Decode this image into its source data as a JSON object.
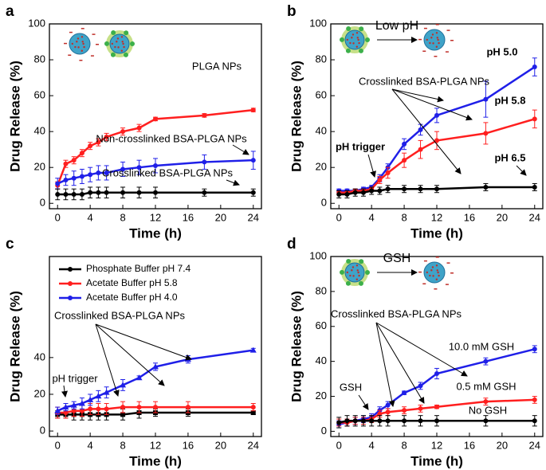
{
  "chart_data": [
    {
      "type": "line",
      "label": "a",
      "xlabel": "Time (h)",
      "ylabel": "Drug Release (%)",
      "xlim": [
        -1,
        25
      ],
      "ylim": [
        -3,
        100
      ],
      "xticks": [
        0,
        4,
        8,
        12,
        16,
        20,
        24
      ],
      "yticks": [
        0,
        20,
        40,
        60,
        80,
        100
      ],
      "x": [
        0,
        1,
        2,
        3,
        4,
        5,
        6,
        8,
        10,
        12,
        18,
        24
      ],
      "series": [
        {
          "name": "PLGA NPs",
          "color": "#ff1f1f",
          "values": [
            10,
            22,
            24,
            28,
            32,
            34,
            37,
            40,
            42,
            47,
            49,
            52
          ],
          "errors": [
            2,
            2,
            2,
            2,
            2,
            2,
            2,
            2,
            2,
            1,
            1,
            1
          ]
        },
        {
          "name": "Non-crosslinked BSA-PLGA NPs",
          "color": "#1f1fe8",
          "values": [
            11,
            13,
            14,
            15,
            16,
            17,
            17,
            19,
            20,
            21,
            23,
            24
          ],
          "errors": [
            3,
            3,
            4,
            4,
            4,
            4,
            4,
            4,
            4,
            4,
            4,
            5
          ]
        },
        {
          "name": "Crosslinked BSA-PLGA NPs",
          "color": "#000000",
          "values": [
            5,
            5,
            5,
            5,
            6,
            6,
            6,
            6,
            6,
            6,
            6,
            6
          ],
          "errors": [
            3,
            3,
            3,
            3,
            3,
            3,
            3,
            3,
            3,
            3,
            2,
            2
          ]
        }
      ]
    },
    {
      "type": "line",
      "label": "b",
      "schematic_label": "Low pH",
      "xlabel": "Time (h)",
      "ylabel": "Drug Release (%)",
      "xlim": [
        -1,
        25
      ],
      "ylim": [
        -3,
        100
      ],
      "xticks": [
        0,
        4,
        8,
        12,
        16,
        20,
        24
      ],
      "yticks": [
        0,
        20,
        40,
        60,
        80,
        100
      ],
      "x": [
        0,
        1,
        2,
        3,
        4,
        5,
        6,
        8,
        10,
        12,
        18,
        24
      ],
      "series": [
        {
          "name": "pH 5.0",
          "color": "#1f1fe8",
          "values": [
            7,
            7,
            7,
            8,
            9,
            14,
            20,
            33,
            41,
            49,
            58,
            76
          ],
          "errors": [
            1,
            1,
            1,
            1,
            1,
            2,
            2,
            3,
            3,
            4,
            10,
            5
          ]
        },
        {
          "name": "pH 5.8",
          "color": "#ff1f1f",
          "values": [
            6,
            6,
            7,
            7,
            8,
            13,
            17,
            24,
            30,
            35,
            39,
            47
          ],
          "errors": [
            1,
            1,
            1,
            1,
            1,
            2,
            3,
            4,
            5,
            5,
            6,
            5
          ]
        },
        {
          "name": "pH 6.5",
          "color": "#000000",
          "values": [
            5,
            5,
            6,
            6,
            7,
            7,
            8,
            8,
            8,
            8,
            9,
            9
          ],
          "errors": [
            2,
            2,
            2,
            2,
            2,
            2,
            2,
            2,
            2,
            2,
            2,
            2
          ]
        }
      ],
      "annotations": [
        "Crosslinked BSA-PLGA NPs",
        "pH trigger"
      ]
    },
    {
      "type": "line",
      "label": "c",
      "xlabel": "Time (h)",
      "ylabel": "Drug Release (%)",
      "xlim": [
        -1,
        25
      ],
      "ylim": [
        -3,
        95
      ],
      "xticks": [
        0,
        4,
        8,
        12,
        16,
        20,
        24
      ],
      "yticks": [
        0,
        20,
        40
      ],
      "legend": "upper left",
      "x": [
        0,
        1,
        2,
        3,
        4,
        5,
        6,
        8,
        10,
        12,
        16,
        24
      ],
      "series": [
        {
          "name": "Phosphate Buffer pH 7.4",
          "color": "#000000",
          "marker": "square",
          "values": [
            9,
            9,
            9,
            9,
            9,
            9,
            9,
            9,
            10,
            10,
            10,
            10
          ],
          "errors": [
            2,
            2,
            3,
            3,
            3,
            3,
            3,
            3,
            3,
            2,
            2,
            1
          ]
        },
        {
          "name": "Acetate Buffer pH 5.8",
          "color": "#ff1f1f",
          "marker": "circle",
          "values": [
            10,
            10,
            11,
            11,
            12,
            12,
            12,
            13,
            13,
            13,
            13,
            13
          ],
          "errors": [
            3,
            3,
            3,
            3,
            3,
            3,
            3,
            3,
            3,
            3,
            3,
            2
          ]
        },
        {
          "name": "Acetate Buffer pH 4.0",
          "color": "#1f1fe8",
          "marker": "triangle",
          "values": [
            11,
            13,
            14,
            15,
            17,
            19,
            21,
            25,
            29,
            35,
            39,
            44
          ],
          "errors": [
            2,
            2,
            2,
            3,
            3,
            3,
            3,
            3,
            1,
            2,
            2,
            1
          ]
        }
      ],
      "annotations": [
        "Crosslinked BSA-PLGA NPs",
        "pH trigger"
      ]
    },
    {
      "type": "line",
      "label": "d",
      "schematic_label": "GSH",
      "xlabel": "Time (h)",
      "ylabel": "Drug Release (%)",
      "xlim": [
        -1,
        25
      ],
      "ylim": [
        -3,
        100
      ],
      "xticks": [
        0,
        4,
        8,
        12,
        16,
        20,
        24
      ],
      "yticks": [
        0,
        20,
        40,
        60,
        80,
        100
      ],
      "x": [
        0,
        1,
        2,
        3,
        4,
        5,
        6,
        8,
        10,
        12,
        18,
        24
      ],
      "series": [
        {
          "name": "10.0 mM GSH",
          "color": "#1f1fe8",
          "values": [
            4,
            5,
            6,
            7,
            8,
            12,
            15,
            22,
            26,
            33,
            40,
            47
          ],
          "errors": [
            2,
            2,
            2,
            2,
            2,
            2,
            2,
            1,
            2,
            3,
            2,
            2
          ]
        },
        {
          "name": "0.5 mM GSH",
          "color": "#ff1f1f",
          "values": [
            5,
            5,
            6,
            6,
            7,
            10,
            11,
            12,
            13,
            14,
            17,
            18
          ],
          "errors": [
            2,
            2,
            2,
            2,
            2,
            2,
            2,
            2,
            2,
            1,
            2,
            2
          ]
        },
        {
          "name": "No GSH",
          "color": "#000000",
          "values": [
            5,
            6,
            6,
            6,
            6,
            6,
            6,
            6,
            6,
            6,
            6,
            6
          ],
          "errors": [
            3,
            3,
            3,
            3,
            3,
            3,
            3,
            3,
            3,
            3,
            3,
            3
          ]
        }
      ],
      "annotations": [
        "Crosslinked BSA-PLGA NPs",
        "GSH"
      ]
    }
  ]
}
